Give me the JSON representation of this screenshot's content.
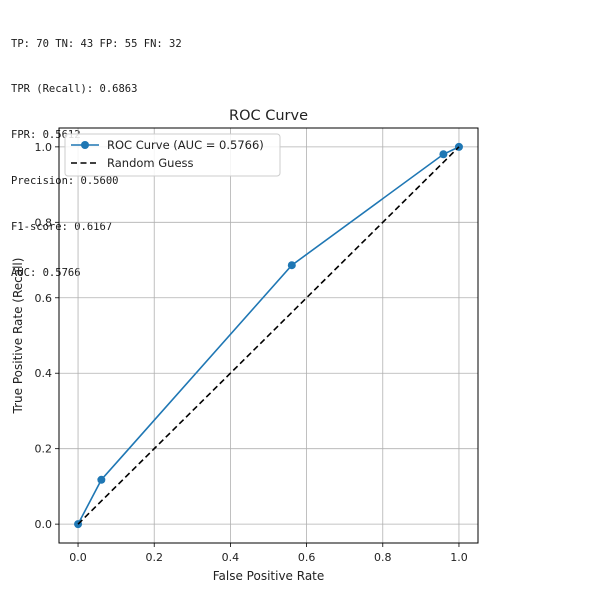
{
  "output_lines": [
    "TP: 70 TN: 43 FP: 55 FN: 32",
    "TPR (Recall): 0.6863",
    "FPR: 0.5612",
    "Precision: 0.5600",
    "F1-score: 0.6167",
    "AUC: 0.5766"
  ],
  "chart_data": {
    "type": "line",
    "title": "ROC Curve",
    "xlabel": "False Positive Rate",
    "ylabel": "True Positive Rate (Recall)",
    "xlim": [
      -0.05,
      1.05
    ],
    "ylim": [
      -0.05,
      1.05
    ],
    "xticks": [
      0.0,
      0.2,
      0.4,
      0.6,
      0.8,
      1.0
    ],
    "yticks": [
      0.0,
      0.2,
      0.4,
      0.6,
      0.8,
      1.0
    ],
    "xtick_labels": [
      "0.0",
      "0.2",
      "0.4",
      "0.6",
      "0.8",
      "1.0"
    ],
    "ytick_labels": [
      "0.0",
      "0.2",
      "0.4",
      "0.6",
      "0.8",
      "1.0"
    ],
    "grid": true,
    "legend_position": "top-left",
    "series": [
      {
        "name": "ROC Curve (AUC = 0.5766)",
        "color": "#1f77b4",
        "linestyle": "solid",
        "marker": "circle",
        "x": [
          0.0,
          0.0612,
          0.5612,
          0.9592,
          1.0
        ],
        "y": [
          0.0,
          0.1176,
          0.6863,
          0.9804,
          1.0
        ]
      },
      {
        "name": "Random Guess",
        "color": "#000000",
        "linestyle": "dashed",
        "marker": "none",
        "x": [
          0.0,
          1.0
        ],
        "y": [
          0.0,
          1.0
        ]
      }
    ]
  }
}
